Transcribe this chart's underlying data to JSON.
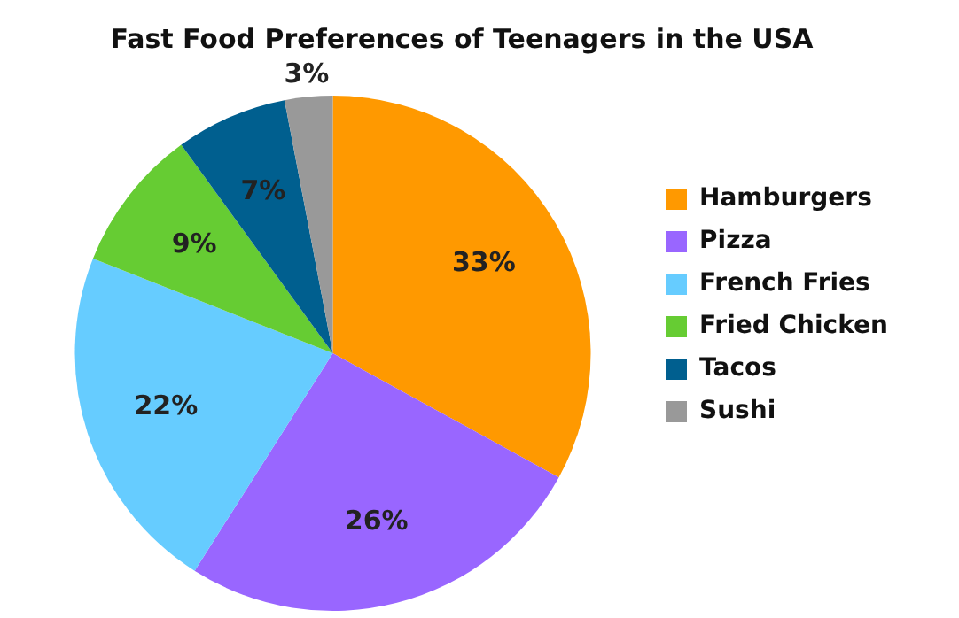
{
  "chart_data": {
    "type": "pie",
    "title": "Fast Food Preferences of Teenagers in the USA",
    "categories": [
      "Hamburgers",
      "Pizza",
      "French Fries",
      "Fried Chicken",
      "Tacos",
      "Sushi"
    ],
    "values": [
      33,
      26,
      22,
      9,
      7,
      3
    ],
    "value_labels": [
      "33%",
      "26%",
      "22%",
      "9%",
      "7%",
      "3%"
    ],
    "colors": [
      "#ff9900",
      "#9966ff",
      "#66ccff",
      "#66cc33",
      "#005f8f",
      "#999999"
    ],
    "legend": "right"
  }
}
